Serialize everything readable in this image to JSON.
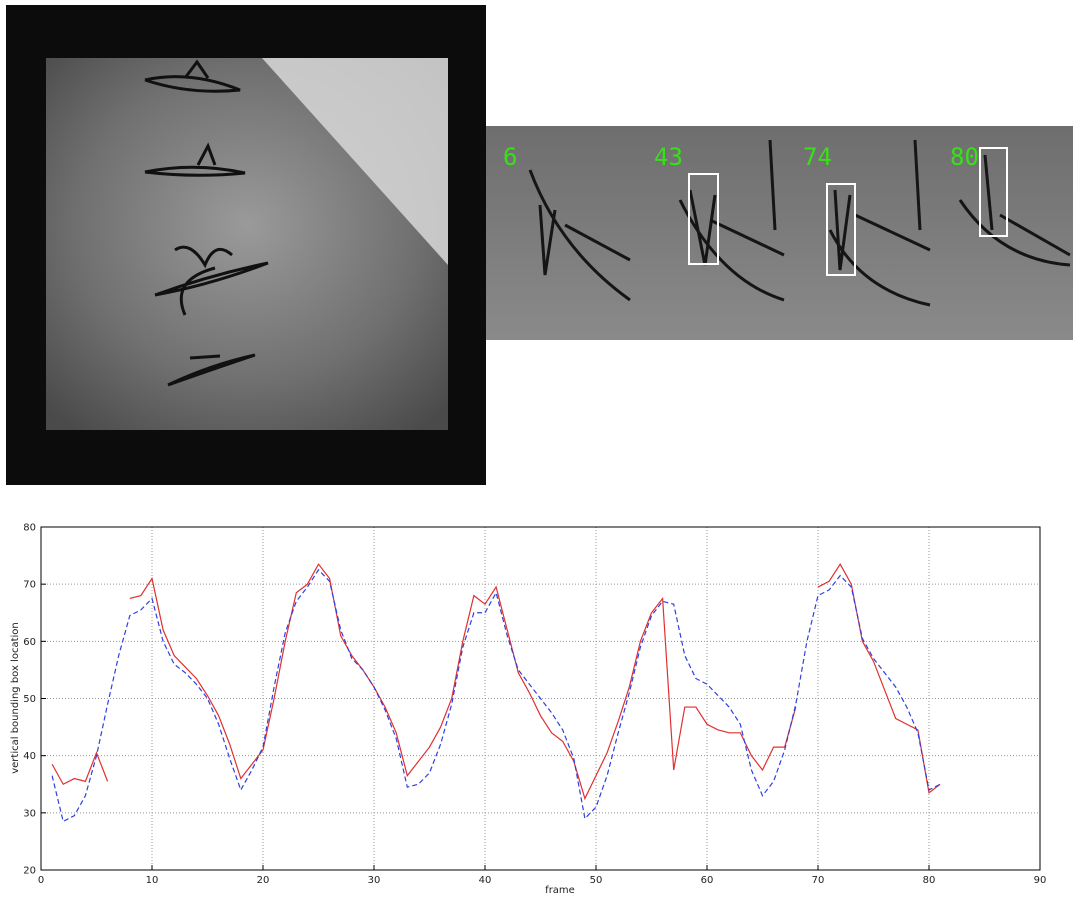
{
  "frames": [
    6,
    43,
    74,
    80
  ],
  "chart_data": {
    "type": "line",
    "xlabel": "frame",
    "ylabel": "vertical bounding box location",
    "x": [
      1,
      2,
      3,
      4,
      5,
      6,
      7,
      8,
      9,
      10,
      11,
      12,
      13,
      14,
      15,
      16,
      17,
      18,
      19,
      20,
      21,
      22,
      23,
      24,
      25,
      26,
      27,
      28,
      29,
      30,
      31,
      32,
      33,
      34,
      35,
      36,
      37,
      38,
      39,
      40,
      41,
      42,
      43,
      44,
      45,
      46,
      47,
      48,
      49,
      50,
      51,
      52,
      53,
      54,
      55,
      56,
      57,
      58,
      59,
      60,
      61,
      62,
      63,
      64,
      65,
      66,
      67,
      68,
      69,
      70,
      71,
      72,
      73,
      74,
      75,
      76,
      77,
      78,
      79,
      80,
      81
    ],
    "series": [
      {
        "color": "#e03030",
        "dash": false,
        "values": [
          38.5,
          35,
          36,
          35.5,
          40.5,
          35.5,
          null,
          67.5,
          68,
          71,
          62,
          57.5,
          55.5,
          53.5,
          50.5,
          47,
          42,
          36,
          38.5,
          41,
          50,
          60,
          68.5,
          70,
          73.5,
          71,
          61,
          57.5,
          55,
          52,
          48.5,
          44,
          36.5,
          39,
          41.5,
          45,
          50,
          60,
          68,
          66.5,
          69.5,
          62,
          54.5,
          51,
          47,
          44,
          42.5,
          39,
          32.5,
          36.5,
          40.5,
          46,
          52,
          60,
          65,
          67.5,
          37.5,
          48.5,
          48.5,
          45.5,
          44.5,
          44,
          44,
          40,
          37.5,
          41.5,
          41.5,
          48.5,
          null,
          69.5,
          70.5,
          73.5,
          70,
          60,
          56.5,
          51.5,
          46.5,
          45.5,
          44.5,
          33.5,
          35
        ]
      },
      {
        "color": "#3040e0",
        "dash": true,
        "values": [
          36.5,
          28.5,
          29.5,
          33,
          40,
          49,
          57.5,
          64.5,
          65.5,
          67.5,
          60,
          56,
          54.5,
          52.5,
          50,
          45.5,
          39.5,
          34,
          37.5,
          41.5,
          52,
          61.5,
          67,
          69.5,
          72.5,
          70.5,
          62,
          57,
          55,
          52,
          48,
          43,
          34.5,
          35,
          37,
          42,
          49,
          59,
          65,
          65,
          68.5,
          61,
          55,
          52.5,
          50,
          47.5,
          44.5,
          39.5,
          29,
          31,
          36.5,
          44,
          51,
          59,
          64.5,
          67,
          66.5,
          57.5,
          53.5,
          52.5,
          50.5,
          48.5,
          45.5,
          37.5,
          33,
          35.5,
          41,
          49,
          60,
          68,
          69,
          71.5,
          69.5,
          60.5,
          57,
          54.5,
          52,
          48.5,
          44,
          34,
          35
        ]
      }
    ],
    "xlim": [
      0,
      90
    ],
    "xticks": [
      0,
      10,
      20,
      30,
      40,
      50,
      60,
      70,
      80,
      90
    ],
    "ylim": [
      20,
      80
    ],
    "yticks": [
      20,
      30,
      40,
      50,
      60,
      70,
      80
    ],
    "grid": true
  }
}
